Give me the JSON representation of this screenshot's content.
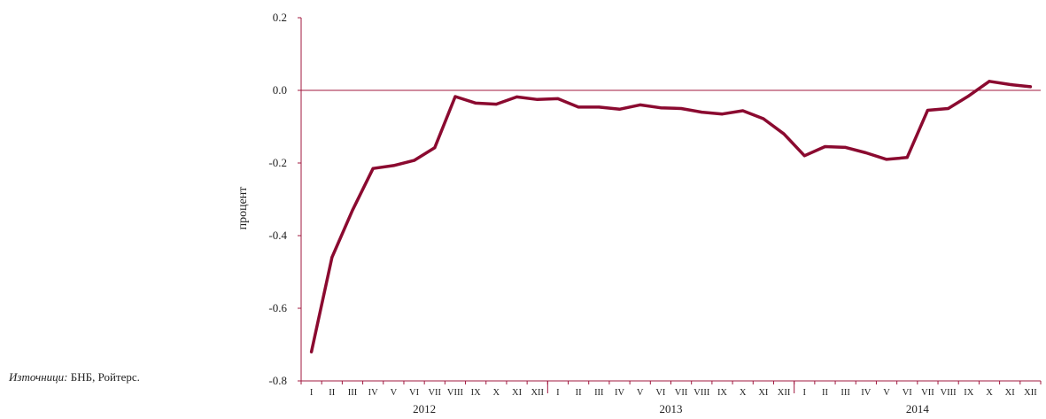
{
  "colors": {
    "line": "#8b0a30",
    "axis": "#a0183f",
    "text": "#222222"
  },
  "source": {
    "prefix": "Източници:",
    "text": "БНБ, Ройтерс."
  },
  "chart_data": {
    "type": "line",
    "title": "",
    "ylabel": "процент",
    "xlabel": "",
    "ylim": [
      -0.8,
      0.2
    ],
    "yticks": [
      0.2,
      0.0,
      -0.2,
      -0.4,
      -0.6,
      -0.8
    ],
    "ytick_labels": [
      "0.2",
      "0.0",
      "-0.2",
      "-0.4",
      "-0.6",
      "-0.8"
    ],
    "grid": false,
    "zero_line": true,
    "x": [
      "I",
      "II",
      "III",
      "IV",
      "V",
      "VI",
      "VII",
      "VIII",
      "IX",
      "X",
      "XI",
      "XII",
      "I",
      "II",
      "III",
      "IV",
      "V",
      "VI",
      "VII",
      "VIII",
      "IX",
      "X",
      "XI",
      "XII",
      "I",
      "II",
      "III",
      "IV",
      "V",
      "VI",
      "VII",
      "VIII",
      "IX",
      "X",
      "XI",
      "XII"
    ],
    "year_groups": [
      {
        "label": "2012",
        "count": 12
      },
      {
        "label": "2013",
        "count": 12
      },
      {
        "label": "2014",
        "count": 12
      }
    ],
    "series": [
      {
        "values": [
          -0.72,
          -0.46,
          -0.33,
          -0.215,
          -0.207,
          -0.193,
          -0.158,
          -0.017,
          -0.035,
          -0.038,
          -0.018,
          -0.025,
          -0.023,
          -0.046,
          -0.046,
          -0.052,
          -0.04,
          -0.048,
          -0.05,
          -0.06,
          -0.065,
          -0.056,
          -0.078,
          -0.12,
          -0.18,
          -0.155,
          -0.157,
          -0.172,
          -0.19,
          -0.185,
          -0.055,
          -0.05,
          -0.015,
          0.025,
          0.016,
          0.01
        ]
      }
    ]
  }
}
